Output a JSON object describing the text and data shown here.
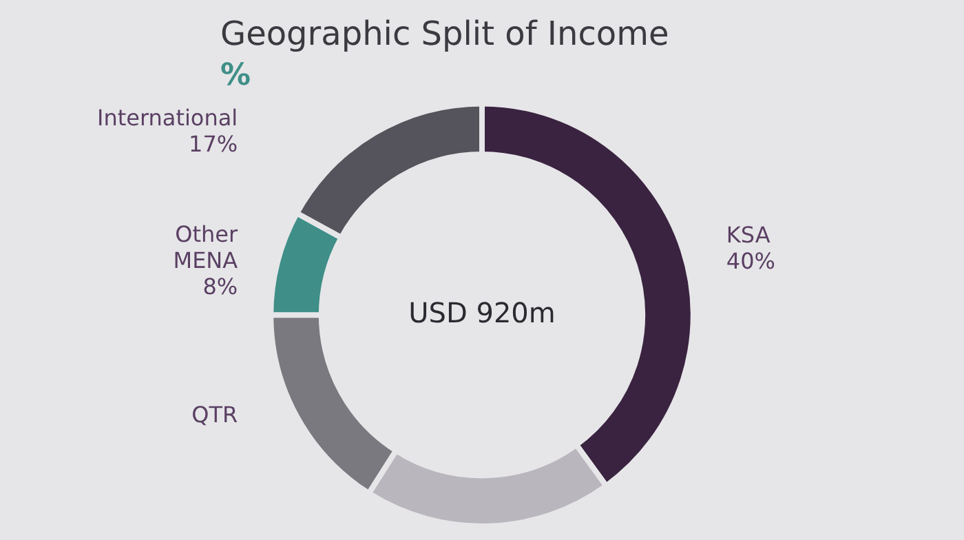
{
  "chart_data": {
    "type": "donut",
    "title": "Geographic Split of Income",
    "subtitle": "%",
    "categories": [
      "KSA",
      null,
      "QTR",
      "Other MENA",
      "International"
    ],
    "values": [
      40,
      19,
      16,
      8,
      17
    ],
    "value_labels": [
      "40%",
      null,
      null,
      "8%",
      "17%"
    ],
    "colors": [
      "#3a2340",
      "#bab6be",
      "#7a797f",
      "#3f8f88",
      "#55545c"
    ],
    "annotations": [
      "USD 920m"
    ],
    "legend": false
  }
}
